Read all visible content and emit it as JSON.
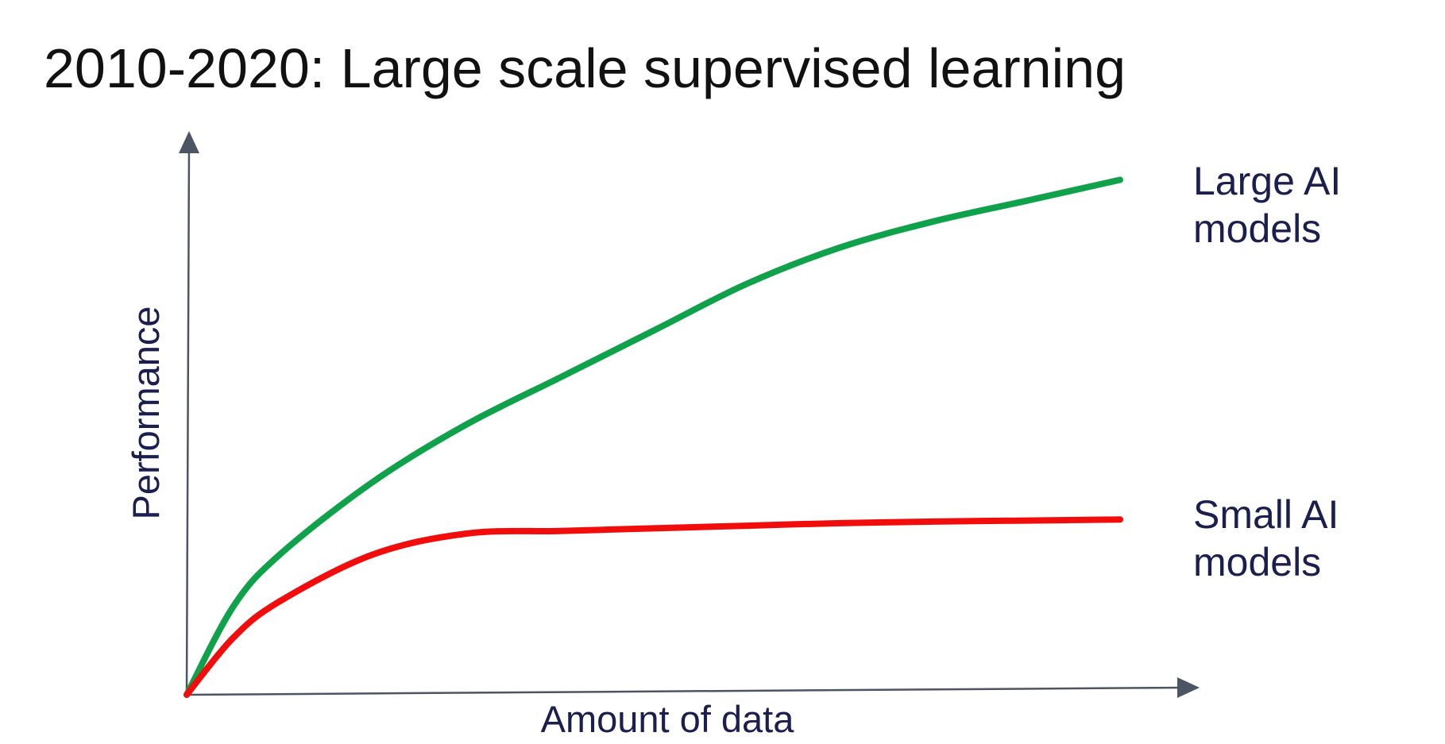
{
  "slide": {
    "title": "2010-2020: Large scale supervised learning"
  },
  "colors": {
    "axis": "#4b5563",
    "text": "#1b1f4f",
    "large_models": "#0fa24a",
    "small_models": "#f20d0d"
  },
  "chart_data": {
    "type": "line",
    "title": "2010-2020: Large scale supervised learning",
    "xlabel": "Amount of data",
    "ylabel": "Performance",
    "xlim": [
      0,
      1
    ],
    "ylim": [
      0,
      1
    ],
    "grid": false,
    "legend": "inline-right",
    "series": [
      {
        "name": "Large AI models",
        "label_lines": [
          "Large AI",
          "models"
        ],
        "color": "#0fa24a",
        "x": [
          0,
          0.05,
          0.1,
          0.2,
          0.3,
          0.4,
          0.5,
          0.6,
          0.7,
          0.8,
          0.9,
          1.0
        ],
        "y": [
          0,
          0.17,
          0.27,
          0.41,
          0.52,
          0.61,
          0.7,
          0.79,
          0.86,
          0.91,
          0.95,
          0.99
        ]
      },
      {
        "name": "Small AI models",
        "label_lines": [
          "Small AI",
          "models"
        ],
        "color": "#f20d0d",
        "x": [
          0,
          0.05,
          0.1,
          0.2,
          0.3,
          0.4,
          0.5,
          0.6,
          0.7,
          0.8,
          0.9,
          1.0
        ],
        "y": [
          0,
          0.11,
          0.18,
          0.27,
          0.31,
          0.315,
          0.32,
          0.325,
          0.33,
          0.333,
          0.335,
          0.337
        ]
      }
    ]
  }
}
